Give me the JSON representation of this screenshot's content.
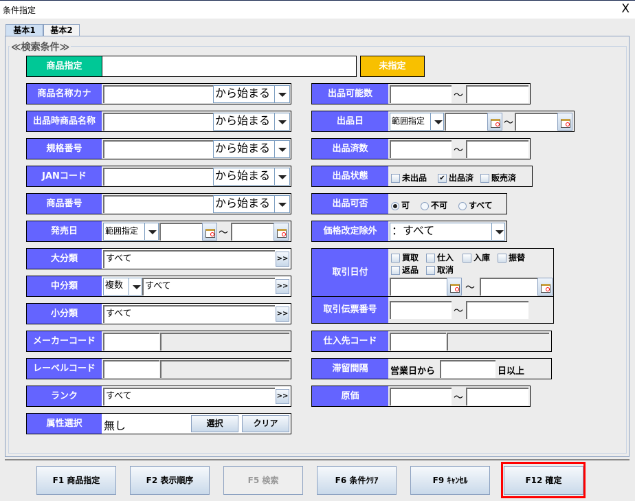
{
  "window": {
    "title": "条件指定",
    "close": "X"
  },
  "tabs": [
    "基本1",
    "基本2"
  ],
  "group_label": "≪検索条件≫",
  "product_spec": {
    "label": "商品指定",
    "value": "",
    "status_button": "未指定",
    "status_color": "#f8c000",
    "label_color": "#00c896"
  },
  "match_options": {
    "selected": "から始まる"
  },
  "left": {
    "kana": {
      "label": "商品名称カナ",
      "match": "から始まる"
    },
    "listing_name": {
      "label": "出品時商品名称",
      "match": "から始まる"
    },
    "spec_no": {
      "label": "規格番号",
      "match": "から始まる"
    },
    "jan": {
      "label": "JANコード",
      "match": "から始まる"
    },
    "product_no": {
      "label": "商品番号",
      "match": "から始まる"
    },
    "release_date": {
      "label": "発売日",
      "mode": "範囲指定",
      "tilde": "〜"
    },
    "large_cat": {
      "label": "大分類",
      "value": "すべて",
      "more": ">>"
    },
    "mid_cat": {
      "label": "中分類",
      "mode": "複数",
      "value": "すべて",
      "more": ">>"
    },
    "small_cat": {
      "label": "小分類",
      "value": "すべて",
      "more": ">>"
    },
    "maker": {
      "label": "メーカーコード"
    },
    "label_code": {
      "label": "レーベルコード"
    },
    "rank": {
      "label": "ランク",
      "value": "すべて",
      "more": ">>"
    },
    "attribute": {
      "label": "属性選択",
      "value": "無し",
      "select": "選択",
      "clear": "クリア"
    }
  },
  "right": {
    "listable_qty": {
      "label": "出品可能数",
      "tilde": "〜"
    },
    "listing_date": {
      "label": "出品日",
      "mode": "範囲指定",
      "tilde": "〜"
    },
    "listed_qty": {
      "label": "出品済数",
      "tilde": "〜"
    },
    "listing_status": {
      "label": "出品状態",
      "options": [
        {
          "label": "未出品",
          "checked": false
        },
        {
          "label": "出品済",
          "checked": true
        },
        {
          "label": "販売済",
          "checked": false
        }
      ]
    },
    "listable": {
      "label": "出品可否",
      "options": [
        {
          "label": "可",
          "selected": true
        },
        {
          "label": "不可",
          "selected": false
        },
        {
          "label": "すべて",
          "selected": false
        }
      ]
    },
    "price_revision": {
      "label": "価格改定除外",
      "value": "：すべて"
    },
    "trade_date": {
      "label": "取引日付",
      "options": [
        {
          "label": "買取",
          "checked": false
        },
        {
          "label": "仕入",
          "checked": false
        },
        {
          "label": "入庫",
          "checked": false
        },
        {
          "label": "振替",
          "checked": false
        },
        {
          "label": "返品",
          "checked": false
        },
        {
          "label": "取消",
          "checked": false
        }
      ],
      "tilde": "〜"
    },
    "slip_no": {
      "label": "取引伝票番号",
      "tilde": "〜"
    },
    "supplier": {
      "label": "仕入先コード"
    },
    "stay": {
      "label": "滞留間隔",
      "prefix": "営業日から",
      "suffix": "日以上"
    },
    "cost": {
      "label": "原価",
      "tilde": "〜"
    }
  },
  "buttons": [
    {
      "label": "F1 商品指定",
      "enabled": true
    },
    {
      "label": "F2 表示順序",
      "enabled": true
    },
    {
      "label": "F5 検索",
      "enabled": false
    },
    {
      "label": "F6 条件ｸﾘｱ",
      "enabled": true
    },
    {
      "label": "F9 ｷｬﾝｾﾙ",
      "enabled": true
    },
    {
      "label": "F12 確定",
      "enabled": true,
      "highlighted": true
    }
  ],
  "highlight_color": "#ff0000"
}
